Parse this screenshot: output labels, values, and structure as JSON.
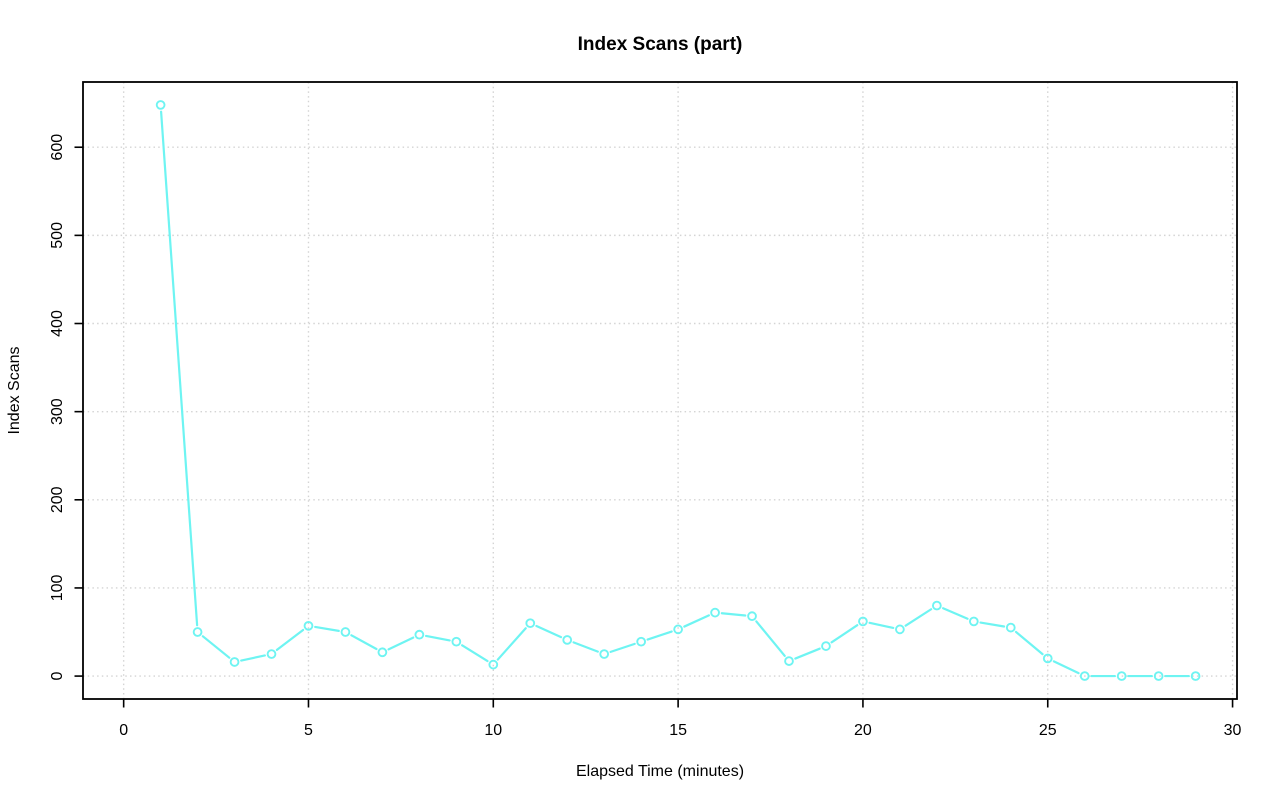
{
  "chart_data": {
    "type": "line",
    "title": "Index Scans (part)",
    "xlabel": "Elapsed Time (minutes)",
    "ylabel": "Index Scans",
    "x": [
      1,
      2,
      3,
      4,
      5,
      6,
      7,
      8,
      9,
      10,
      11,
      12,
      13,
      14,
      15,
      16,
      17,
      18,
      19,
      20,
      21,
      22,
      23,
      24,
      25,
      26,
      27,
      28,
      29
    ],
    "values": [
      648,
      50,
      16,
      25,
      57,
      50,
      27,
      47,
      39,
      13,
      60,
      41,
      25,
      39,
      53,
      72,
      68,
      17,
      34,
      62,
      53,
      80,
      62,
      55,
      20,
      0,
      0,
      0,
      0
    ],
    "series": [
      {
        "name": "Index Scans",
        "values": [
          648,
          50,
          16,
          25,
          57,
          50,
          27,
          47,
          39,
          13,
          60,
          41,
          25,
          39,
          53,
          72,
          68,
          17,
          34,
          62,
          53,
          80,
          62,
          55,
          20,
          0,
          0,
          0,
          0
        ]
      }
    ],
    "x_ticks": [
      0,
      5,
      10,
      15,
      20,
      25,
      30
    ],
    "y_ticks": [
      0,
      100,
      200,
      300,
      400,
      500,
      600
    ],
    "xlim": [
      -1.1,
      30.12
    ],
    "ylim": [
      -26,
      674
    ],
    "grid": "dotted",
    "grid_color": "#d4d4d4",
    "legend": "none",
    "series_color": "#6EF4F2",
    "axis_color": "#000000",
    "marker": "open-circle",
    "line_type": "b (segments with gaps at points)"
  }
}
